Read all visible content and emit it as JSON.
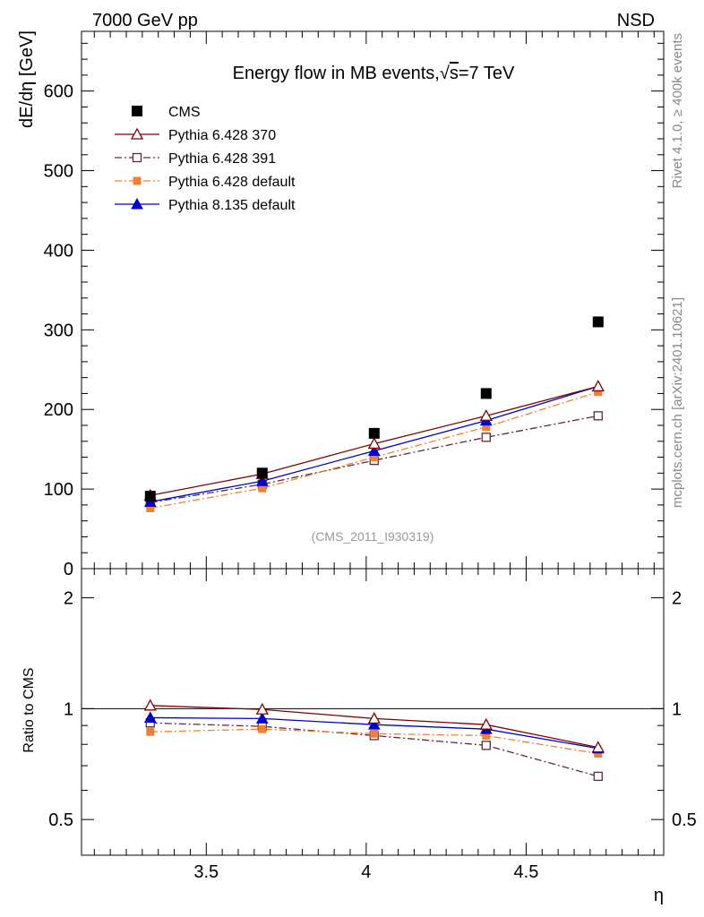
{
  "header": {
    "left_label": "7000 GeV pp",
    "right_label": "NSD"
  },
  "side_labels": {
    "rivet": "Rivet 4.1.0, ≥ 400k events",
    "mcplots": "mcplots.cern.ch [arXiv:2401.10621]"
  },
  "chart_data": {
    "type": "line",
    "title": "Energy flow in MB events,√s=7 TeV",
    "title_prefix": "Energy flow in MB events,",
    "title_sqrt": "√",
    "title_s": "s",
    "title_suffix": "=7 TeV",
    "analysis_tag": "(CMS_2011_I930319)",
    "xlabel": "η",
    "ylabel": "dE/dη [GeV]",
    "ratio_ylabel": "Ratio to CMS",
    "xlim": [
      3.11,
      4.93
    ],
    "ylim": [
      0,
      675
    ],
    "ratio_ylim": [
      0.4,
      2.4
    ],
    "ratio_log": true,
    "x_ticks": [
      3.5,
      4,
      4.5
    ],
    "x_tick_labels": [
      "3.5",
      "4",
      "4.5"
    ],
    "y_ticks": [
      0,
      100,
      200,
      300,
      400,
      500,
      600
    ],
    "y_tick_labels": [
      "0",
      "100",
      "200",
      "300",
      "400",
      "500",
      "600"
    ],
    "ratio_ticks": [
      0.5,
      1,
      2
    ],
    "ratio_tick_labels": [
      "0.5",
      "1",
      "2"
    ],
    "x": [
      3.325,
      3.675,
      4.025,
      4.375,
      4.725
    ],
    "series": [
      {
        "name": "CMS",
        "key": "cms",
        "color": "#000000",
        "marker": "square-filled",
        "line": "none",
        "values": [
          91,
          120,
          170,
          220,
          310
        ]
      },
      {
        "name": "Pythia 6.428 370",
        "key": "p370",
        "color": "#800000",
        "marker": "triangle-open",
        "line": "solid",
        "values": [
          92,
          119,
          157,
          192,
          229
        ]
      },
      {
        "name": "Pythia 6.428 391",
        "key": "p391",
        "color": "#5c2a3c",
        "marker": "square-open",
        "line": "dashdot",
        "values": [
          83,
          106,
          136,
          165,
          192
        ]
      },
      {
        "name": "Pythia 6.428 default",
        "key": "pdef",
        "color": "#f28030",
        "marker": "square-filled",
        "line": "dashdot",
        "values": [
          76,
          101,
          140,
          178,
          222
        ]
      },
      {
        "name": "Pythia 8.135 default",
        "key": "p8",
        "color": "#0000cc",
        "marker": "triangle-filled",
        "line": "solid",
        "values": [
          84,
          110,
          148,
          186,
          229
        ]
      }
    ],
    "ratio_series": [
      {
        "name": "Pythia 6.428 370",
        "key": "p370",
        "values": [
          1.02,
          0.995,
          0.94,
          0.905,
          0.785
        ]
      },
      {
        "name": "Pythia 6.428 391",
        "key": "p391",
        "values": [
          0.915,
          0.895,
          0.845,
          0.795,
          0.655
        ]
      },
      {
        "name": "Pythia 6.428 default",
        "key": "pdef",
        "values": [
          0.865,
          0.88,
          0.855,
          0.845,
          0.755
        ]
      },
      {
        "name": "Pythia 8.135 default",
        "key": "p8",
        "values": [
          0.945,
          0.94,
          0.905,
          0.88,
          0.78
        ]
      }
    ],
    "legend_position": "top-left"
  }
}
